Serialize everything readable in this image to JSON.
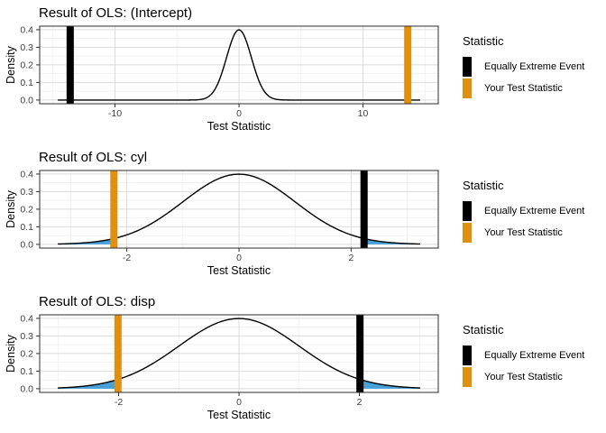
{
  "figure": {
    "background": "#FFFFFF"
  },
  "legend": {
    "title": "Statistic",
    "items": [
      {
        "id": "equally-extreme-event",
        "label": "Equally Extreme Event",
        "color": "#000000"
      },
      {
        "id": "your-test-statistic",
        "label": "Your Test Statistic",
        "color": "#E0900F"
      }
    ]
  },
  "colors": {
    "your_test_statistic": "#E0900F",
    "equally_extreme_event": "#000000",
    "tail_fill": "#47A0D8",
    "curve": "#000000",
    "grid_major": "#DBDBDB",
    "grid_minor": "#EDEDED",
    "panel_border": "#2E2E2E",
    "tick_mark": "#333333",
    "tick_text": "#404040"
  },
  "chart_data": [
    {
      "type": "line",
      "title": "Result of OLS: (Intercept)",
      "xlabel": "Test Statistic",
      "ylabel": "Density",
      "distribution": "standard normal density curve, peak 0.399 at 0",
      "x_ticks": [
        -10,
        0,
        10
      ],
      "x_minor_ticks": [
        -15,
        -5,
        5,
        15
      ],
      "y_ticks": [
        0,
        0.1,
        0.2,
        0.3,
        0.4
      ],
      "y_minor_ticks": [
        0.05,
        0.15,
        0.25,
        0.35
      ],
      "ylim": [
        -0.021,
        0.42
      ],
      "curve_span": [
        -14.61,
        14.61
      ],
      "your_test_statistic": 13.61,
      "equally_extreme_event": -13.61,
      "tails_shaded_beyond": 13.61
    },
    {
      "type": "line",
      "title": "Result of OLS: cyl",
      "xlabel": "Test Statistic",
      "ylabel": "Density",
      "distribution": "standard normal density curve, peak 0.399 at 0",
      "x_ticks": [
        -2,
        0,
        2
      ],
      "x_minor_ticks": [
        -3,
        -1,
        1,
        3
      ],
      "y_ticks": [
        0,
        0.1,
        0.2,
        0.3,
        0.4
      ],
      "y_minor_ticks": [
        0.05,
        0.15,
        0.25,
        0.35
      ],
      "ylim": [
        -0.021,
        0.42
      ],
      "curve_span": [
        -3.23,
        3.23
      ],
      "your_test_statistic": -2.23,
      "equally_extreme_event": 2.23,
      "tails_shaded_beyond": 2.23
    },
    {
      "type": "line",
      "title": "Result of OLS: disp",
      "xlabel": "Test Statistic",
      "ylabel": "Density",
      "distribution": "standard normal density curve, peak 0.399 at 0",
      "x_ticks": [
        -2,
        0,
        2
      ],
      "x_minor_ticks": [
        -3,
        -1,
        1,
        3
      ],
      "y_ticks": [
        0,
        0.1,
        0.2,
        0.3,
        0.4
      ],
      "y_minor_ticks": [
        0.05,
        0.15,
        0.25,
        0.35
      ],
      "ylim": [
        -0.021,
        0.42
      ],
      "curve_span": [
        -3.01,
        3.01
      ],
      "your_test_statistic": -2.01,
      "equally_extreme_event": 2.01,
      "tails_shaded_beyond": 2.01
    }
  ]
}
